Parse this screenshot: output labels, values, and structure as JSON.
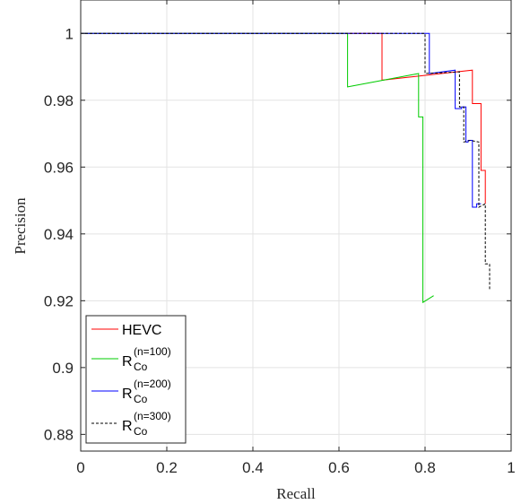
{
  "chart_data": {
    "type": "line",
    "title": "",
    "xlabel": "Recall",
    "ylabel": "Precision",
    "xlim": [
      0,
      1
    ],
    "ylim": [
      0.875,
      1.01
    ],
    "xticks": [
      0,
      0.2,
      0.4,
      0.6,
      0.8,
      1
    ],
    "xtick_labels": [
      "0",
      "0.2",
      "0.4",
      "0.6",
      "0.8",
      "1"
    ],
    "yticks": [
      0.88,
      0.9,
      0.92,
      0.94,
      0.96,
      0.98,
      1
    ],
    "ytick_labels": [
      "0.88",
      "0.9",
      "0.92",
      "0.94",
      "0.96",
      "0.98",
      "1"
    ],
    "grid": true,
    "legend_position": "bottom-left",
    "series": [
      {
        "name": "HEVC",
        "color": "#ff0000",
        "dash": "solid",
        "x": [
          0,
          0.7,
          0.7,
          0.91,
          0.91,
          0.93,
          0.93,
          0.94,
          0.94
        ],
        "y": [
          1,
          1,
          0.986,
          0.989,
          0.979,
          0.979,
          0.959,
          0.959,
          0.949
        ]
      },
      {
        "name_base": "R",
        "name_sub": "Co",
        "name_sup": "(n=100)",
        "color": "#00cc00",
        "dash": "solid",
        "x": [
          0,
          0.62,
          0.62,
          0.785,
          0.785,
          0.795,
          0.795,
          0.82
        ],
        "y": [
          1,
          1,
          0.984,
          0.988,
          0.975,
          0.975,
          0.9195,
          0.9215
        ]
      },
      {
        "name_base": "R",
        "name_sub": "Co",
        "name_sup": "(n=200)",
        "color": "#0000ff",
        "dash": "solid",
        "x": [
          0,
          0.81,
          0.81,
          0.87,
          0.87,
          0.885,
          0.885,
          0.895,
          0.895,
          0.9,
          0.9,
          0.91,
          0.91,
          0.92,
          0.92,
          0.93
        ],
        "y": [
          1,
          1,
          0.988,
          0.989,
          0.9775,
          0.9775,
          0.978,
          0.978,
          0.9675,
          0.9675,
          0.968,
          0.968,
          0.948,
          0.948,
          0.949,
          0.949
        ]
      },
      {
        "name_base": "R",
        "name_sub": "Co",
        "name_sup": "(n=300)",
        "color": "#000000",
        "dash": "dashed",
        "x": [
          0,
          0.8,
          0.8,
          0.88,
          0.88,
          0.89,
          0.89,
          0.905,
          0.905,
          0.925,
          0.925,
          0.94,
          0.94,
          0.945,
          0.945,
          0.95,
          0.95
        ],
        "y": [
          1,
          1,
          0.988,
          0.9885,
          0.978,
          0.978,
          0.9675,
          0.968,
          0.968,
          0.9675,
          0.948,
          0.949,
          0.931,
          0.931,
          0.931,
          0.931,
          0.923
        ]
      }
    ]
  }
}
